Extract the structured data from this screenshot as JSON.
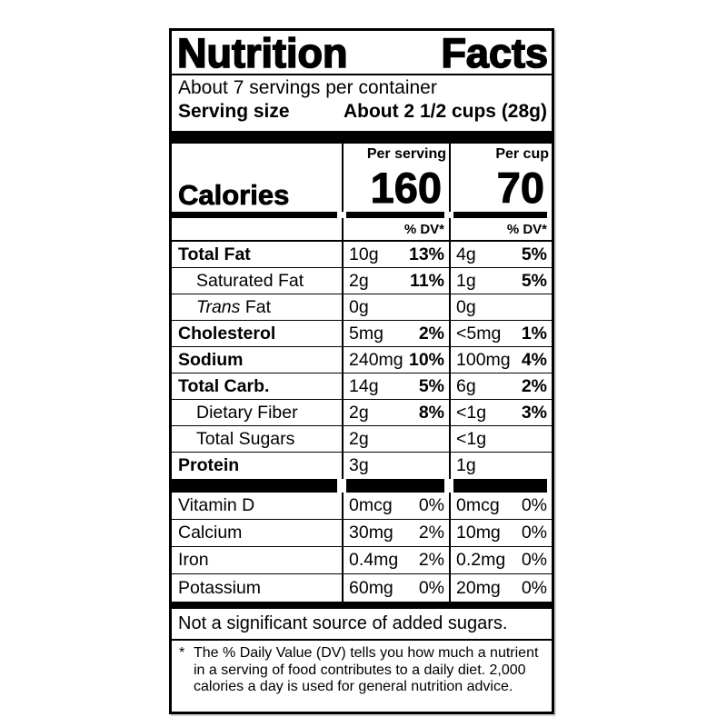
{
  "label": {
    "title_word1": "Nutrition",
    "title_word2": "Facts",
    "servings_per_container": "About 7 servings per container",
    "serving_size_label": "Serving size",
    "serving_size_value": "About 2 1/2 cups (28g)",
    "colors": {
      "ink": "#000000",
      "paper": "#ffffff"
    }
  },
  "calories": {
    "label": "Calories",
    "per_serving_header": "Per serving",
    "per_serving_value": "160",
    "per_cup_header": "Per cup",
    "per_cup_value": "70",
    "dv_header_serving": "% DV*",
    "dv_header_cup": "% DV*"
  },
  "nutrient_rows": [
    {
      "name": "Total Fat",
      "amount_serving": "10g",
      "dv_serving": "13%",
      "amount_cup": "4g",
      "dv_cup": "5%"
    },
    {
      "name": "Saturated Fat",
      "amount_serving": "2g",
      "dv_serving": "11%",
      "amount_cup": "1g",
      "dv_cup": "5%"
    },
    {
      "name_italic": "Trans",
      "name": "Fat",
      "amount_serving": "0g",
      "dv_serving": "",
      "amount_cup": "0g",
      "dv_cup": ""
    },
    {
      "name": "Cholesterol",
      "amount_serving": "5mg",
      "dv_serving": "2%",
      "amount_cup": "<5mg",
      "dv_cup": "1%"
    },
    {
      "name": "Sodium",
      "amount_serving": "240mg",
      "dv_serving": "10%",
      "amount_cup": "100mg",
      "dv_cup": "4%"
    },
    {
      "name": "Total Carb.",
      "amount_serving": "14g",
      "dv_serving": "5%",
      "amount_cup": "6g",
      "dv_cup": "2%"
    },
    {
      "name": "Dietary Fiber",
      "amount_serving": "2g",
      "dv_serving": "8%",
      "amount_cup": "<1g",
      "dv_cup": "3%"
    },
    {
      "name": "Total Sugars",
      "amount_serving": "2g",
      "dv_serving": "",
      "amount_cup": "<1g",
      "dv_cup": ""
    },
    {
      "name": "Protein",
      "amount_serving": "3g",
      "dv_serving": "",
      "amount_cup": "1g",
      "dv_cup": ""
    }
  ],
  "vitamin_rows": [
    {
      "name": "Vitamin D",
      "amount_serving": "0mcg",
      "dv_serving": "0%",
      "amount_cup": "0mcg",
      "dv_cup": "0%"
    },
    {
      "name": "Calcium",
      "amount_serving": "30mg",
      "dv_serving": "2%",
      "amount_cup": "10mg",
      "dv_cup": "0%"
    },
    {
      "name": "Iron",
      "amount_serving": "0.4mg",
      "dv_serving": "2%",
      "amount_cup": "0.2mg",
      "dv_cup": "0%"
    },
    {
      "name": "Potassium",
      "amount_serving": "60mg",
      "dv_serving": "0%",
      "amount_cup": "20mg",
      "dv_cup": "0%"
    }
  ],
  "footer": {
    "not_significant": "Not a significant source of added sugars.",
    "footnote_marker": "*",
    "footnote_text": "The % Daily Value (DV) tells you how much a nutrient in a serving of food contributes to a daily diet. 2,000 calories a day is used for general nutrition advice."
  }
}
